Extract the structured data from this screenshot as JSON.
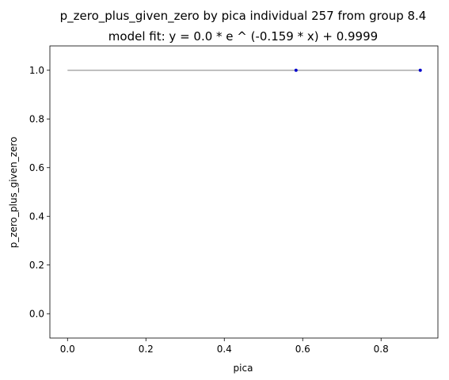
{
  "chart_data": {
    "type": "scatter",
    "title": "p_zero_plus_given_zero by pica individual 257 from group 8.4",
    "subtitle": "model fit: y = 0.0 * e ^ (-0.159 * x) + 0.9999",
    "xlabel": "pica",
    "ylabel": "p_zero_plus_given_zero",
    "xlim": [
      -0.045,
      0.945
    ],
    "ylim": [
      -0.1,
      1.1
    ],
    "x_ticks": [
      0.0,
      0.2,
      0.4,
      0.6,
      0.8
    ],
    "x_tick_labels": [
      "0.0",
      "0.2",
      "0.4",
      "0.6",
      "0.8"
    ],
    "y_ticks": [
      0.0,
      0.2,
      0.4,
      0.6,
      0.8,
      1.0
    ],
    "y_tick_labels": [
      "0.0",
      "0.2",
      "0.4",
      "0.6",
      "0.8",
      "1.0"
    ],
    "grid": false,
    "series": [
      {
        "kind": "scatter",
        "x": [
          0.583,
          0.9
        ],
        "y": [
          1.0,
          1.0
        ],
        "color": "#0000cc"
      },
      {
        "kind": "line",
        "x": [
          0.0,
          0.9
        ],
        "y": [
          0.9999,
          0.9999
        ],
        "color": "#aaaaaa"
      }
    ]
  }
}
